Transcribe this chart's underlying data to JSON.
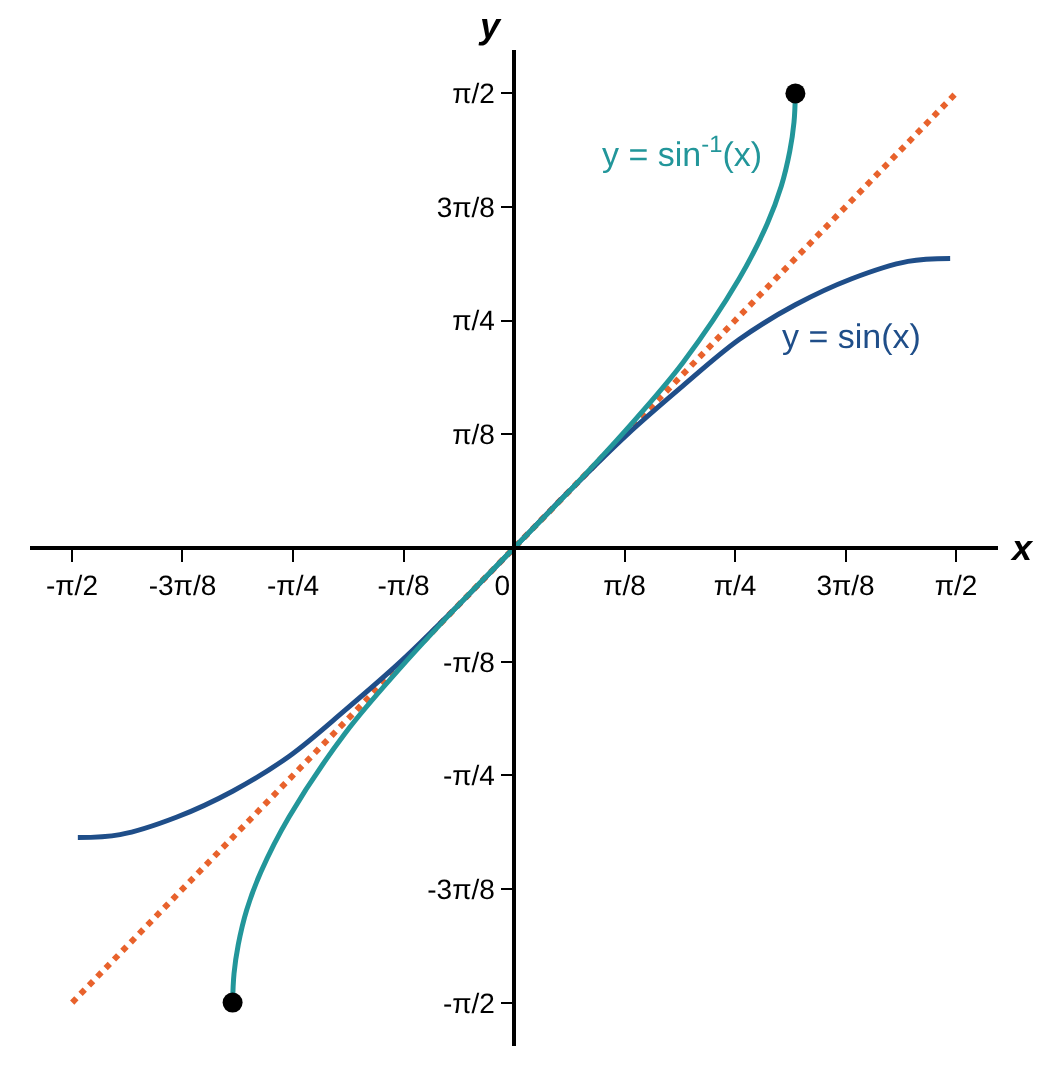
{
  "chart_data": {
    "type": "line",
    "xlabel": "x",
    "ylabel": "y",
    "xlim": [
      -1.72,
      1.72
    ],
    "ylim": [
      -1.72,
      1.72
    ],
    "xticks": [
      {
        "value": -1.5708,
        "label": "-π/2"
      },
      {
        "value": -1.1781,
        "label": "-3π/8"
      },
      {
        "value": -0.7854,
        "label": "-π/4"
      },
      {
        "value": -0.3927,
        "label": "-π/8"
      },
      {
        "value": 0,
        "label": "0"
      },
      {
        "value": 0.3927,
        "label": "π/8"
      },
      {
        "value": 0.7854,
        "label": "π/4"
      },
      {
        "value": 1.1781,
        "label": "3π/8"
      },
      {
        "value": 1.5708,
        "label": "π/2"
      }
    ],
    "yticks": [
      {
        "value": -1.5708,
        "label": "-π/2"
      },
      {
        "value": -1.1781,
        "label": "-3π/8"
      },
      {
        "value": -0.7854,
        "label": "-π/4"
      },
      {
        "value": -0.3927,
        "label": "-π/8"
      },
      {
        "value": 0.3927,
        "label": "π/8"
      },
      {
        "value": 0.7854,
        "label": "π/4"
      },
      {
        "value": 1.1781,
        "label": "3π/8"
      },
      {
        "value": 1.5708,
        "label": "π/2"
      }
    ],
    "series": [
      {
        "line_style": "dotted",
        "color": "#e8622c",
        "x": [
          -1.57,
          1.57
        ],
        "values": [
          -1.57,
          1.57
        ]
      },
      {
        "name": "y = sin(x)",
        "color": "#1f4e89",
        "x": [
          -1.55,
          -1.4,
          -1.2,
          -1.0,
          -0.8,
          -0.6,
          -0.4,
          -0.2,
          0,
          0.2,
          0.4,
          0.6,
          0.8,
          1.0,
          1.2,
          1.4,
          1.55
        ],
        "values": [
          -1.0,
          -0.99,
          -0.93,
          -0.84,
          -0.72,
          -0.56,
          -0.39,
          -0.2,
          0,
          0.2,
          0.39,
          0.56,
          0.72,
          0.84,
          0.93,
          0.99,
          1.0
        ]
      },
      {
        "name": "y = sin$^{-1}$(x)",
        "color": "#22969a",
        "x": [
          -1,
          -0.995,
          -0.98,
          -0.95,
          -0.9,
          -0.8,
          -0.6,
          -0.4,
          -0.2,
          0,
          0.2,
          0.4,
          0.6,
          0.8,
          0.9,
          0.95,
          0.98,
          0.995,
          1
        ],
        "values": [
          -1.57,
          -1.47,
          -1.37,
          -1.25,
          -1.12,
          -0.93,
          -0.64,
          -0.41,
          -0.2,
          0,
          0.2,
          0.41,
          0.64,
          0.93,
          1.12,
          1.25,
          1.37,
          1.47,
          1.57
        ]
      },
      {
        "type": "scatter",
        "marker": "circle",
        "color": "#000000",
        "x": [
          -1,
          1
        ],
        "values": [
          -1.57,
          1.57
        ]
      }
    ]
  }
}
